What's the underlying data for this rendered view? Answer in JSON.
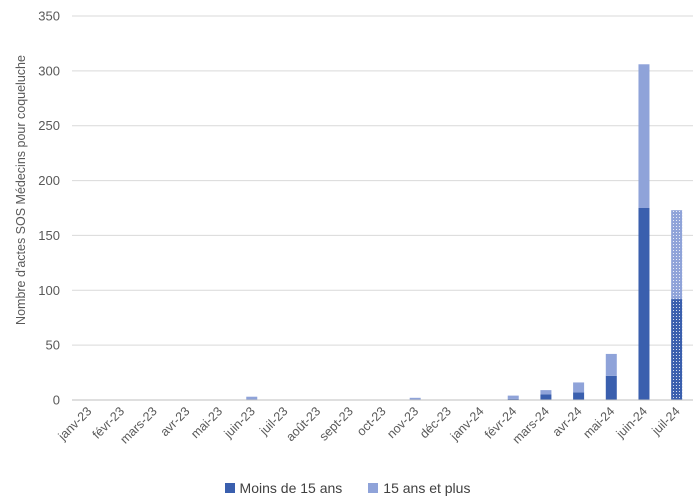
{
  "chart_data": {
    "type": "bar",
    "stacked": true,
    "ylabel": "Nombre d'actes SOS Médecins pour coqueluche",
    "xlabel": "",
    "title": "",
    "ylim": [
      0,
      350
    ],
    "yticks": [
      0,
      50,
      100,
      150,
      200,
      250,
      300,
      350
    ],
    "grid": true,
    "legend_position": "bottom",
    "categories": [
      "janv-23",
      "févr-23",
      "mars-23",
      "avr-23",
      "mai-23",
      "juin-23",
      "juil-23",
      "août-23",
      "sept-23",
      "oct-23",
      "nov-23",
      "déc-23",
      "janv-24",
      "févr-24",
      "mars-24",
      "avr-24",
      "mai-24",
      "juin-24",
      "juil-24"
    ],
    "partial_categories": [
      "juil-24"
    ],
    "series": [
      {
        "name": "Moins de 15 ans",
        "color": "#3a5fae",
        "values": [
          0,
          0,
          0,
          0,
          0,
          0,
          0,
          0,
          0,
          0,
          0,
          0,
          0,
          1,
          5,
          7,
          22,
          175,
          92
        ]
      },
      {
        "name": "15 ans et plus",
        "color": "#8fa3d9",
        "values": [
          0,
          0,
          0,
          0,
          0,
          3,
          0,
          0,
          0,
          0,
          2,
          0,
          0,
          3,
          4,
          9,
          20,
          131,
          81
        ]
      }
    ]
  }
}
